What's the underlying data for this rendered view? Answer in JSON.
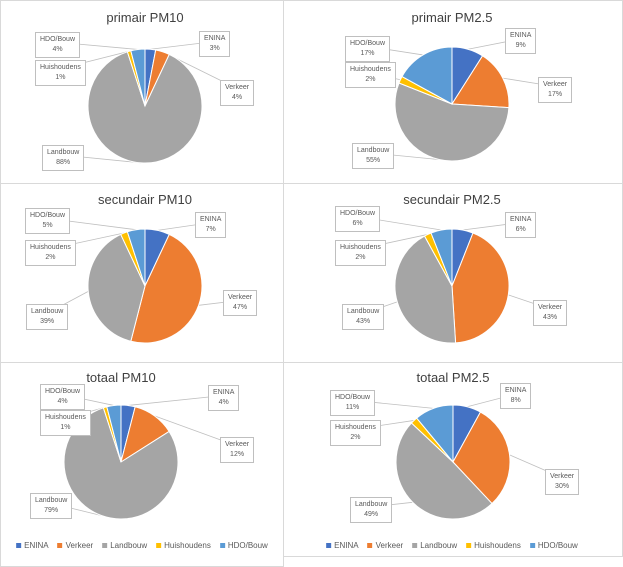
{
  "chart_data": [
    {
      "type": "pie",
      "title": "primair PM10",
      "categories": [
        "ENINA",
        "Verkeer",
        "Landbouw",
        "Huishoudens",
        "HDO/Bouw"
      ],
      "values": [
        3,
        4,
        88,
        1,
        4
      ],
      "labels": [
        "3%",
        "4%",
        "88%",
        "1%",
        "4%"
      ]
    },
    {
      "type": "pie",
      "title": "primair PM2.5",
      "categories": [
        "ENINA",
        "Verkeer",
        "Landbouw",
        "Huishoudens",
        "HDO/Bouw"
      ],
      "values": [
        9,
        17,
        55,
        2,
        17
      ],
      "labels": [
        "9%",
        "17%",
        "55%",
        "2%",
        "17%"
      ]
    },
    {
      "type": "pie",
      "title": "secundair PM10",
      "categories": [
        "ENINA",
        "Verkeer",
        "Landbouw",
        "Huishoudens",
        "HDO/Bouw"
      ],
      "values": [
        7,
        47,
        39,
        2,
        5
      ],
      "labels": [
        "7%",
        "47%",
        "39%",
        "2%",
        "5%"
      ]
    },
    {
      "type": "pie",
      "title": "secundair PM2.5",
      "categories": [
        "ENINA",
        "Verkeer",
        "Landbouw",
        "Huishoudens",
        "HDO/Bouw"
      ],
      "values": [
        6,
        43,
        43,
        2,
        6
      ],
      "labels": [
        "6%",
        "43%",
        "43%",
        "2%",
        "6%"
      ]
    },
    {
      "type": "pie",
      "title": "totaal PM10",
      "categories": [
        "ENINA",
        "Verkeer",
        "Landbouw",
        "Huishoudens",
        "HDO/Bouw"
      ],
      "values": [
        4,
        12,
        79,
        1,
        4
      ],
      "labels": [
        "4%",
        "12%",
        "79%",
        "1%",
        "4%"
      ],
      "legend": "bottom"
    },
    {
      "type": "pie",
      "title": "totaal PM2.5",
      "categories": [
        "ENINA",
        "Verkeer",
        "Landbouw",
        "Huishoudens",
        "HDO/Bouw"
      ],
      "values": [
        8,
        30,
        49,
        2,
        11
      ],
      "labels": [
        "8%",
        "30%",
        "49%",
        "2%",
        "11%"
      ],
      "legend": "bottom"
    }
  ],
  "colors": [
    "#4472C4",
    "#ED7D31",
    "#A5A5A5",
    "#FFC000",
    "#5B9BD5"
  ]
}
